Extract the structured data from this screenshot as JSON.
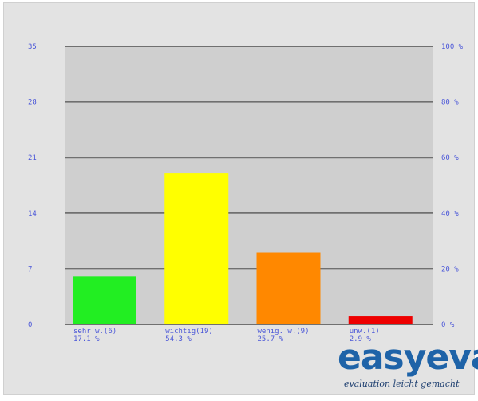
{
  "chart_data": {
    "type": "bar",
    "categories": [
      "sehr w.(6)",
      "wichtig(19)",
      "wenig. w.(9)",
      "unw.(1)"
    ],
    "percent_labels": [
      "17.1 %",
      "54.3 %",
      "25.7 %",
      "2.9 %"
    ],
    "values": [
      6,
      19,
      9,
      1
    ],
    "percents": [
      17.1,
      54.3,
      25.7,
      2.9
    ],
    "colors": [
      "#22ee22",
      "#ffff00",
      "#ff8800",
      "#ee0000"
    ],
    "y_left_ticks": [
      "0",
      "7",
      "14",
      "21",
      "28",
      "35"
    ],
    "y_left_lim": [
      0,
      35
    ],
    "y_right_ticks": [
      "0 %",
      "20 %",
      "40 %",
      "60 %",
      "80 %",
      "100 %"
    ],
    "y_right_lim": [
      0,
      100
    ],
    "grid": true,
    "title": "",
    "xlabel": "",
    "ylabel": ""
  },
  "logo": {
    "word": "easyeva",
    "tagline": "evaluation  leicht gemacht"
  }
}
